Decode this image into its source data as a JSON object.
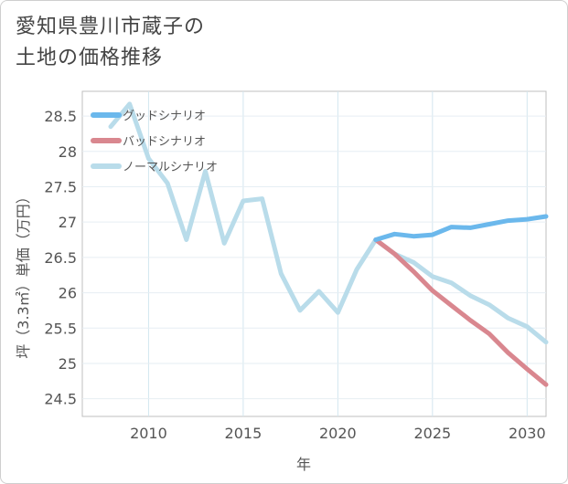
{
  "title_lines": [
    "愛知県豊川市蔵子の",
    "土地の価格推移"
  ],
  "chart_data": {
    "type": "line",
    "title": "愛知県豊川市蔵子の土地の価格推移",
    "xlabel": "年",
    "ylabel": "坪（3.3㎡）単価（万円）",
    "xlim": [
      2006.5,
      2031
    ],
    "ylim": [
      24.25,
      28.85
    ],
    "x_ticks": [
      2010,
      2015,
      2020,
      2025,
      2030
    ],
    "y_ticks": [
      24.5,
      25,
      25.5,
      26,
      26.5,
      27,
      27.5,
      28,
      28.5
    ],
    "x_tick_labels": [
      "2010",
      "2015",
      "2020",
      "2025",
      "2030"
    ],
    "y_tick_labels": [
      "24.5",
      "25",
      "25.5",
      "26",
      "26.5",
      "27",
      "27.5",
      "28",
      "28.5"
    ],
    "grid": true,
    "legend_position": "top-left",
    "series": [
      {
        "name": "ノーマルシナリオ",
        "color": "#b9dcea",
        "x": [
          2008,
          2009,
          2010,
          2011,
          2012,
          2013,
          2014,
          2015,
          2016,
          2017,
          2018,
          2019,
          2020,
          2021,
          2022,
          2023,
          2024,
          2025,
          2026,
          2027,
          2028,
          2029,
          2030,
          2031
        ],
        "y": [
          28.35,
          28.67,
          27.9,
          27.55,
          26.75,
          27.72,
          26.7,
          27.3,
          27.33,
          26.27,
          25.75,
          26.02,
          25.72,
          26.33,
          26.75,
          26.55,
          26.43,
          26.23,
          26.14,
          25.96,
          25.83,
          25.64,
          25.52,
          25.3
        ]
      },
      {
        "name": "バッドシナリオ",
        "color": "#d9878f",
        "x": [
          2022,
          2023,
          2024,
          2025,
          2026,
          2027,
          2028,
          2029,
          2030,
          2031
        ],
        "y": [
          26.75,
          26.55,
          26.3,
          26.03,
          25.82,
          25.61,
          25.42,
          25.15,
          24.92,
          24.7
        ]
      },
      {
        "name": "グッドシナリオ",
        "color": "#6bb8ec",
        "x": [
          2022,
          2023,
          2024,
          2025,
          2026,
          2027,
          2028,
          2029,
          2030,
          2031
        ],
        "y": [
          26.75,
          26.83,
          26.8,
          26.82,
          26.93,
          26.92,
          26.97,
          27.02,
          27.04,
          27.08
        ]
      }
    ],
    "legend": [
      {
        "name": "グッドシナリオ",
        "color": "#6bb8ec"
      },
      {
        "name": "バッドシナリオ",
        "color": "#d9878f"
      },
      {
        "name": "ノーマルシナリオ",
        "color": "#b9dcea"
      }
    ]
  }
}
